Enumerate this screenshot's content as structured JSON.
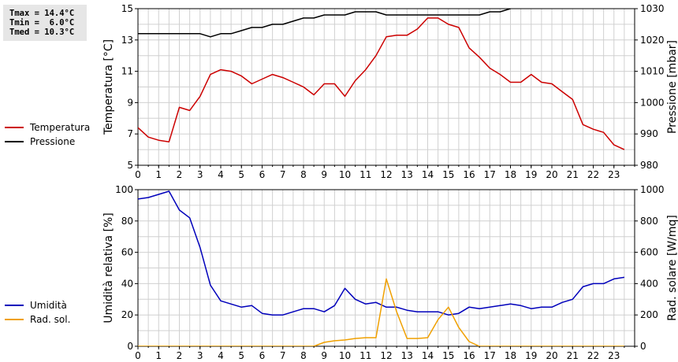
{
  "stats": {
    "tmax": "Tmax = 14.4°C",
    "tmin": "Tmin =  6.0°C",
    "tmed": "Tmed = 10.3°C"
  },
  "colors": {
    "temperature": "#cc0000",
    "pressure": "#000000",
    "humidity": "#0000bb",
    "solar": "#f0a000",
    "grid": "#d0d0d0"
  },
  "chart_data": [
    {
      "type": "line",
      "xlim": [
        0,
        24
      ],
      "x_ticks": [
        "0",
        "1",
        "2",
        "3",
        "4",
        "5",
        "6",
        "7",
        "8",
        "9",
        "10",
        "11",
        "12",
        "13",
        "14",
        "15",
        "16",
        "17",
        "18",
        "19",
        "20",
        "21",
        "22",
        "23"
      ],
      "ylabel": "Temperatura [°C]",
      "ylim": [
        5,
        15
      ],
      "y_ticks": [
        "5",
        "7",
        "9",
        "11",
        "13",
        "15"
      ],
      "y2label": "Pressione [mbar]",
      "y2lim": [
        980,
        1030
      ],
      "y2_ticks": [
        "980",
        "990",
        "1000",
        "1010",
        "1020",
        "1030"
      ],
      "legend": "left",
      "grid": true,
      "series": [
        {
          "name": "Temperatura",
          "axis": "left",
          "x": [
            0,
            0.5,
            1,
            1.5,
            2,
            2.5,
            3,
            3.5,
            4,
            4.5,
            5,
            5.5,
            6,
            6.5,
            7,
            7.5,
            8,
            8.5,
            9,
            9.5,
            10,
            10.5,
            11,
            11.5,
            12,
            12.5,
            13,
            13.5,
            14,
            14.5,
            15,
            15.5,
            16,
            16.5,
            17,
            17.5,
            18,
            18.5,
            19,
            19.5,
            20,
            20.5,
            21,
            21.5,
            22,
            22.5,
            23,
            23.5
          ],
          "values": [
            7.4,
            6.8,
            6.6,
            6.5,
            8.7,
            8.5,
            9.4,
            10.8,
            11.1,
            11.0,
            10.7,
            10.2,
            10.5,
            10.8,
            10.6,
            10.3,
            10.0,
            9.5,
            10.2,
            10.2,
            9.4,
            10.4,
            11.1,
            12.0,
            13.2,
            13.3,
            13.3,
            13.7,
            14.4,
            14.4,
            14.0,
            13.8,
            12.5,
            11.9,
            11.2,
            10.8,
            10.3,
            10.3,
            10.8,
            10.3,
            10.2,
            9.7,
            9.2,
            7.6,
            7.3,
            7.1,
            6.3,
            6.0
          ]
        },
        {
          "name": "Pressione",
          "axis": "right",
          "x": [
            0,
            0.5,
            1,
            1.5,
            2,
            2.5,
            3,
            3.5,
            4,
            4.5,
            5,
            5.5,
            6,
            6.5,
            7,
            7.5,
            8,
            8.5,
            9,
            9.5,
            10,
            10.5,
            11,
            11.5,
            12,
            12.5,
            13,
            13.5,
            14,
            14.5,
            15,
            15.5,
            16,
            16.5,
            17,
            17.5,
            18
          ],
          "values": [
            1022,
            1022,
            1022,
            1022,
            1022,
            1022,
            1022,
            1021,
            1022,
            1022,
            1023,
            1024,
            1024,
            1025,
            1025,
            1026,
            1027,
            1027,
            1028,
            1028,
            1028,
            1029,
            1029,
            1029,
            1028,
            1028,
            1028,
            1028,
            1028,
            1028,
            1028,
            1028,
            1028,
            1028,
            1029,
            1029,
            1030
          ]
        }
      ]
    },
    {
      "type": "line",
      "xlim": [
        0,
        24
      ],
      "x_ticks": [
        "0",
        "1",
        "2",
        "3",
        "4",
        "5",
        "6",
        "7",
        "8",
        "9",
        "10",
        "11",
        "12",
        "13",
        "14",
        "15",
        "16",
        "17",
        "18",
        "19",
        "20",
        "21",
        "22",
        "23"
      ],
      "ylabel": "Umidità relativa [%]",
      "ylim": [
        0,
        100
      ],
      "y_ticks": [
        "0",
        "20",
        "40",
        "60",
        "80",
        "100"
      ],
      "y2label": "Rad. solare [W/mq]",
      "y2lim": [
        0,
        1000
      ],
      "y2_ticks": [
        "0",
        "200",
        "400",
        "600",
        "800",
        "1000"
      ],
      "legend": "left",
      "grid": true,
      "series": [
        {
          "name": "Umidità",
          "axis": "left",
          "x": [
            0,
            0.5,
            1,
            1.5,
            2,
            2.5,
            3,
            3.5,
            4,
            4.5,
            5,
            5.5,
            6,
            6.5,
            7,
            7.5,
            8,
            8.5,
            9,
            9.5,
            10,
            10.5,
            11,
            11.5,
            12,
            12.5,
            13,
            13.5,
            14,
            14.5,
            15,
            15.5,
            16,
            16.5,
            17,
            17.5,
            18,
            18.5,
            19,
            19.5,
            20,
            20.5,
            21,
            21.5,
            22,
            22.5,
            23,
            23.5
          ],
          "values": [
            94,
            95,
            97,
            99,
            87,
            82,
            63,
            39,
            29,
            27,
            25,
            26,
            21,
            20,
            20,
            22,
            24,
            24,
            22,
            26,
            37,
            30,
            27,
            28,
            25,
            25,
            23,
            22,
            22,
            22,
            20,
            21,
            25,
            24,
            25,
            26,
            27,
            26,
            24,
            25,
            25,
            28,
            30,
            38,
            40,
            40,
            43,
            44
          ]
        },
        {
          "name": "Rad. sol.",
          "axis": "right",
          "x": [
            0,
            0.5,
            1,
            1.5,
            2,
            2.5,
            3,
            3.5,
            4,
            4.5,
            5,
            5.5,
            6,
            6.5,
            7,
            7.5,
            8,
            8.5,
            9,
            9.5,
            10,
            10.5,
            11,
            11.5,
            12,
            12.5,
            13,
            13.5,
            14,
            14.5,
            15,
            15.5,
            16,
            16.5,
            17,
            17.5,
            18,
            18.5,
            19,
            19.5,
            20,
            20.5,
            21,
            21.5,
            22,
            22.5,
            23,
            23.5
          ],
          "values": [
            0,
            0,
            0,
            0,
            0,
            0,
            0,
            0,
            0,
            0,
            0,
            0,
            0,
            0,
            0,
            0,
            0,
            0,
            25,
            35,
            40,
            50,
            55,
            55,
            430,
            220,
            50,
            50,
            55,
            170,
            250,
            120,
            30,
            0,
            0,
            0,
            0,
            0,
            0,
            0,
            0,
            0,
            0,
            0,
            0,
            0,
            0,
            0
          ]
        }
      ]
    }
  ]
}
